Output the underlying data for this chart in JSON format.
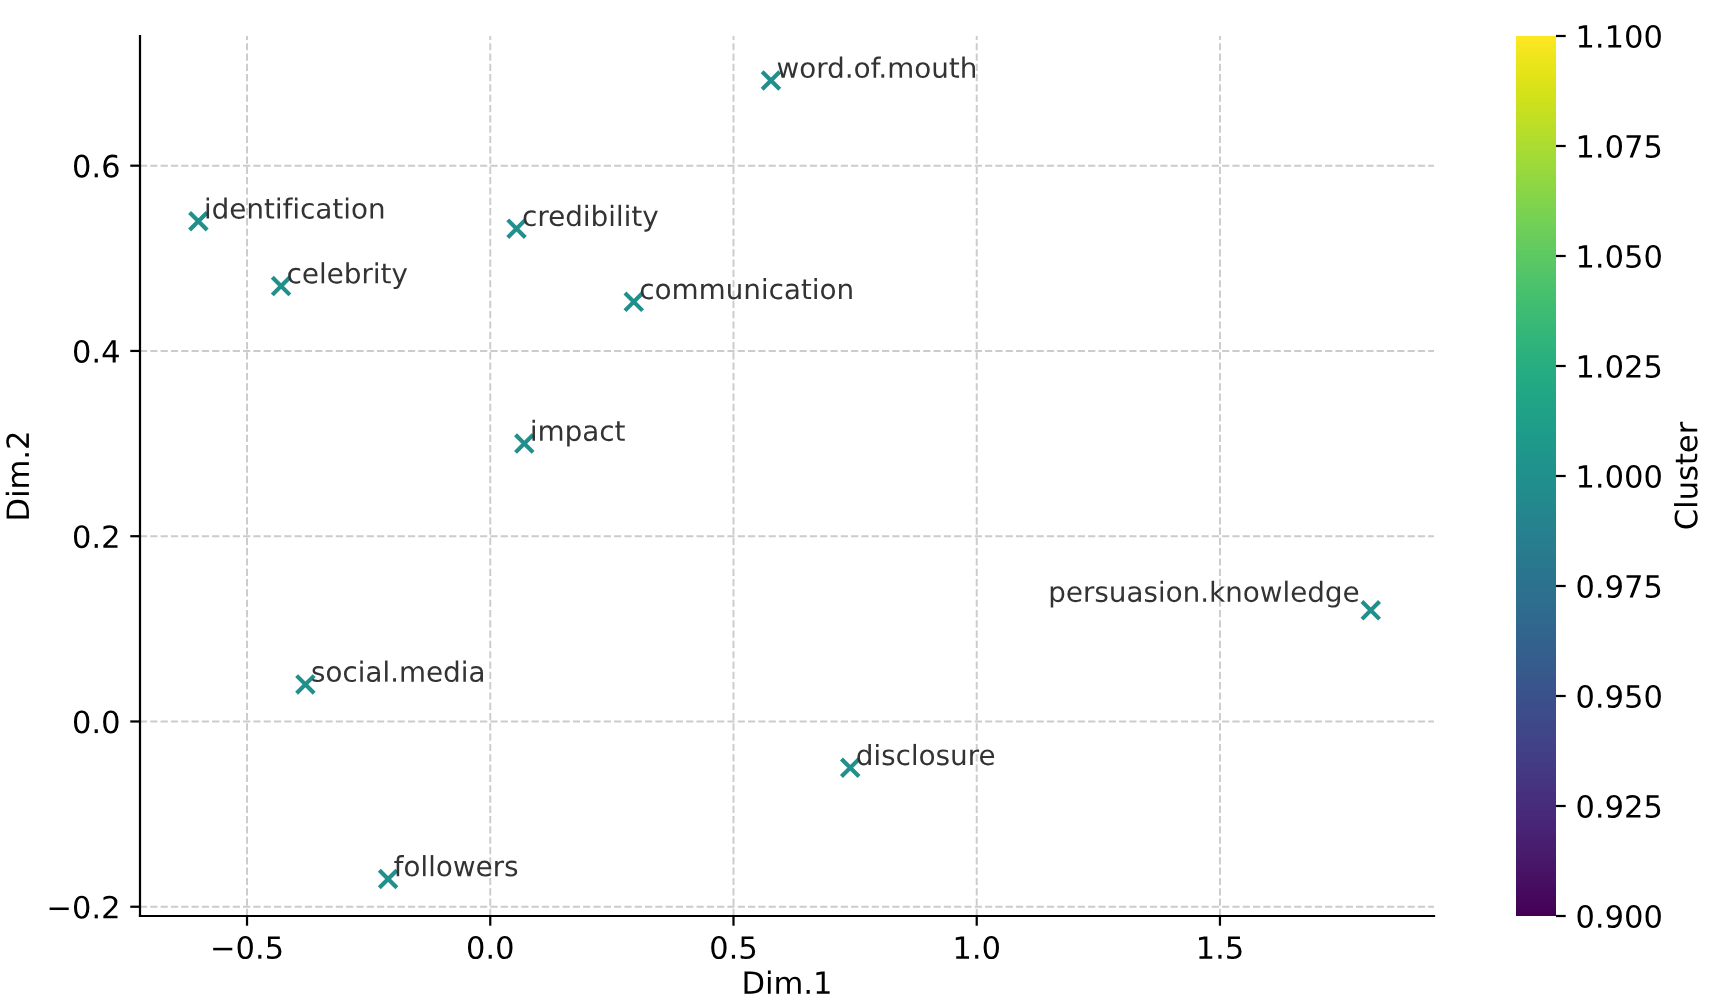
{
  "chart_data": {
    "type": "scatter",
    "xlabel": "Dim.1",
    "ylabel": "Dim.2",
    "clabel": "Cluster",
    "x": [
      0.577,
      -0.6,
      0.054,
      -0.43,
      0.295,
      0.07,
      1.81,
      -0.38,
      0.74,
      -0.21
    ],
    "values": [
      0.692,
      0.54,
      0.532,
      0.47,
      0.453,
      0.3,
      0.12,
      0.04,
      -0.05,
      -0.17
    ],
    "cvalues": [
      1,
      1,
      1,
      1,
      1,
      1,
      1,
      1,
      1,
      1
    ],
    "clim": [
      0.9,
      1.1
    ],
    "cticks": [
      {
        "value": 0.9,
        "label": "0.900"
      },
      {
        "value": 0.925,
        "label": "0.925"
      },
      {
        "value": 0.95,
        "label": "0.950"
      },
      {
        "value": 0.975,
        "label": "0.975"
      },
      {
        "value": 1.0,
        "label": "1.000"
      },
      {
        "value": 1.025,
        "label": "1.025"
      },
      {
        "value": 1.05,
        "label": "1.050"
      },
      {
        "value": 1.075,
        "label": "1.075"
      },
      {
        "value": 1.1,
        "label": "1.100"
      }
    ],
    "annotations": [
      {
        "text": "word.of.mouth",
        "x": 0.577,
        "y": 0.692
      },
      {
        "text": "identification",
        "x": -0.6,
        "y": 0.54
      },
      {
        "text": "credibility",
        "x": 0.054,
        "y": 0.532
      },
      {
        "text": "celebrity",
        "x": -0.43,
        "y": 0.47
      },
      {
        "text": "communication",
        "x": 0.295,
        "y": 0.453
      },
      {
        "text": "impact",
        "x": 0.07,
        "y": 0.3
      },
      {
        "text": "persuasion.knowledge",
        "x": 1.81,
        "y": 0.12
      },
      {
        "text": "social.media",
        "x": -0.38,
        "y": 0.04
      },
      {
        "text": "disclosure",
        "x": 0.74,
        "y": -0.05
      },
      {
        "text": "followers",
        "x": -0.21,
        "y": -0.17
      }
    ],
    "xlim": [
      -0.72,
      1.94
    ],
    "ylim": [
      -0.21,
      0.74
    ],
    "xticks": [
      {
        "value": -0.5,
        "label": "−0.5"
      },
      {
        "value": 0.0,
        "label": "0.0"
      },
      {
        "value": 0.5,
        "label": "0.5"
      },
      {
        "value": 1.0,
        "label": "1.0"
      },
      {
        "value": 1.5,
        "label": "1.5"
      }
    ],
    "yticks": [
      {
        "value": -0.2,
        "label": "−0.2"
      },
      {
        "value": 0.0,
        "label": "0.0"
      },
      {
        "value": 0.2,
        "label": "0.2"
      },
      {
        "value": 0.4,
        "label": "0.4"
      },
      {
        "value": 0.6,
        "label": "0.6"
      }
    ],
    "grid": true,
    "marker": "cross"
  }
}
